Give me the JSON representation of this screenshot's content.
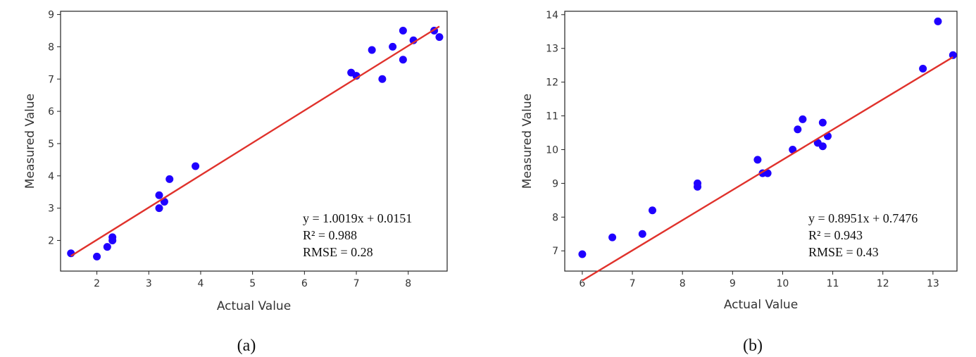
{
  "chart_data": [
    {
      "type": "scatter",
      "panel_label": "(a)",
      "xlabel": "Actual Value",
      "ylabel": "Measured Value",
      "xlim": [
        1.3,
        8.75
      ],
      "ylim": [
        1.05,
        9.1
      ],
      "xticks": [
        2,
        3,
        4,
        5,
        6,
        7,
        8
      ],
      "yticks": [
        2,
        3,
        4,
        5,
        6,
        7,
        8,
        9
      ],
      "point_color": "#1f00ff",
      "fit_color": "#e0322c",
      "points": [
        [
          1.5,
          1.6
        ],
        [
          2.0,
          1.5
        ],
        [
          2.2,
          1.8
        ],
        [
          2.3,
          2.0
        ],
        [
          2.3,
          2.1
        ],
        [
          3.2,
          3.0
        ],
        [
          3.2,
          3.4
        ],
        [
          3.3,
          3.2
        ],
        [
          3.4,
          3.9
        ],
        [
          3.9,
          4.3
        ],
        [
          6.9,
          7.2
        ],
        [
          7.0,
          7.1
        ],
        [
          7.3,
          7.9
        ],
        [
          7.5,
          7.0
        ],
        [
          7.7,
          8.0
        ],
        [
          7.9,
          8.5
        ],
        [
          7.9,
          7.6
        ],
        [
          8.1,
          8.2
        ],
        [
          8.5,
          8.5
        ],
        [
          8.6,
          8.3
        ]
      ],
      "fit": {
        "slope": 1.0019,
        "intercept": 0.0151,
        "x_range": [
          1.5,
          8.6
        ]
      },
      "annotations": [
        "y = 1.0019x + 0.0151",
        "R² = 0.988",
        "RMSE = 0.28"
      ]
    },
    {
      "type": "scatter",
      "panel_label": "(b)",
      "xlabel": "Actual Value",
      "ylabel": "Measured Value",
      "xlim": [
        5.65,
        13.48
      ],
      "ylim": [
        6.4,
        14.1
      ],
      "xticks": [
        6,
        7,
        8,
        9,
        10,
        11,
        12,
        13
      ],
      "yticks": [
        7,
        8,
        9,
        10,
        11,
        12,
        13,
        14
      ],
      "point_color": "#1f00ff",
      "fit_color": "#e0322c",
      "points": [
        [
          6.0,
          6.9
        ],
        [
          6.6,
          7.4
        ],
        [
          7.2,
          7.5
        ],
        [
          7.4,
          8.2
        ],
        [
          8.3,
          8.9
        ],
        [
          8.3,
          9.0
        ],
        [
          9.5,
          9.7
        ],
        [
          9.6,
          9.3
        ],
        [
          9.7,
          9.3
        ],
        [
          10.2,
          10.0
        ],
        [
          10.3,
          10.6
        ],
        [
          10.4,
          10.9
        ],
        [
          10.7,
          10.2
        ],
        [
          10.8,
          10.1
        ],
        [
          10.8,
          10.8
        ],
        [
          10.9,
          10.4
        ],
        [
          12.8,
          12.4
        ],
        [
          13.1,
          13.8
        ],
        [
          13.4,
          12.8
        ]
      ],
      "fit": {
        "slope": 0.8951,
        "intercept": 0.7476,
        "x_range": [
          6.0,
          13.4
        ]
      },
      "annotations": [
        "y = 0.8951x + 0.7476",
        "R² = 0.943",
        "RMSE = 0.43"
      ]
    }
  ]
}
